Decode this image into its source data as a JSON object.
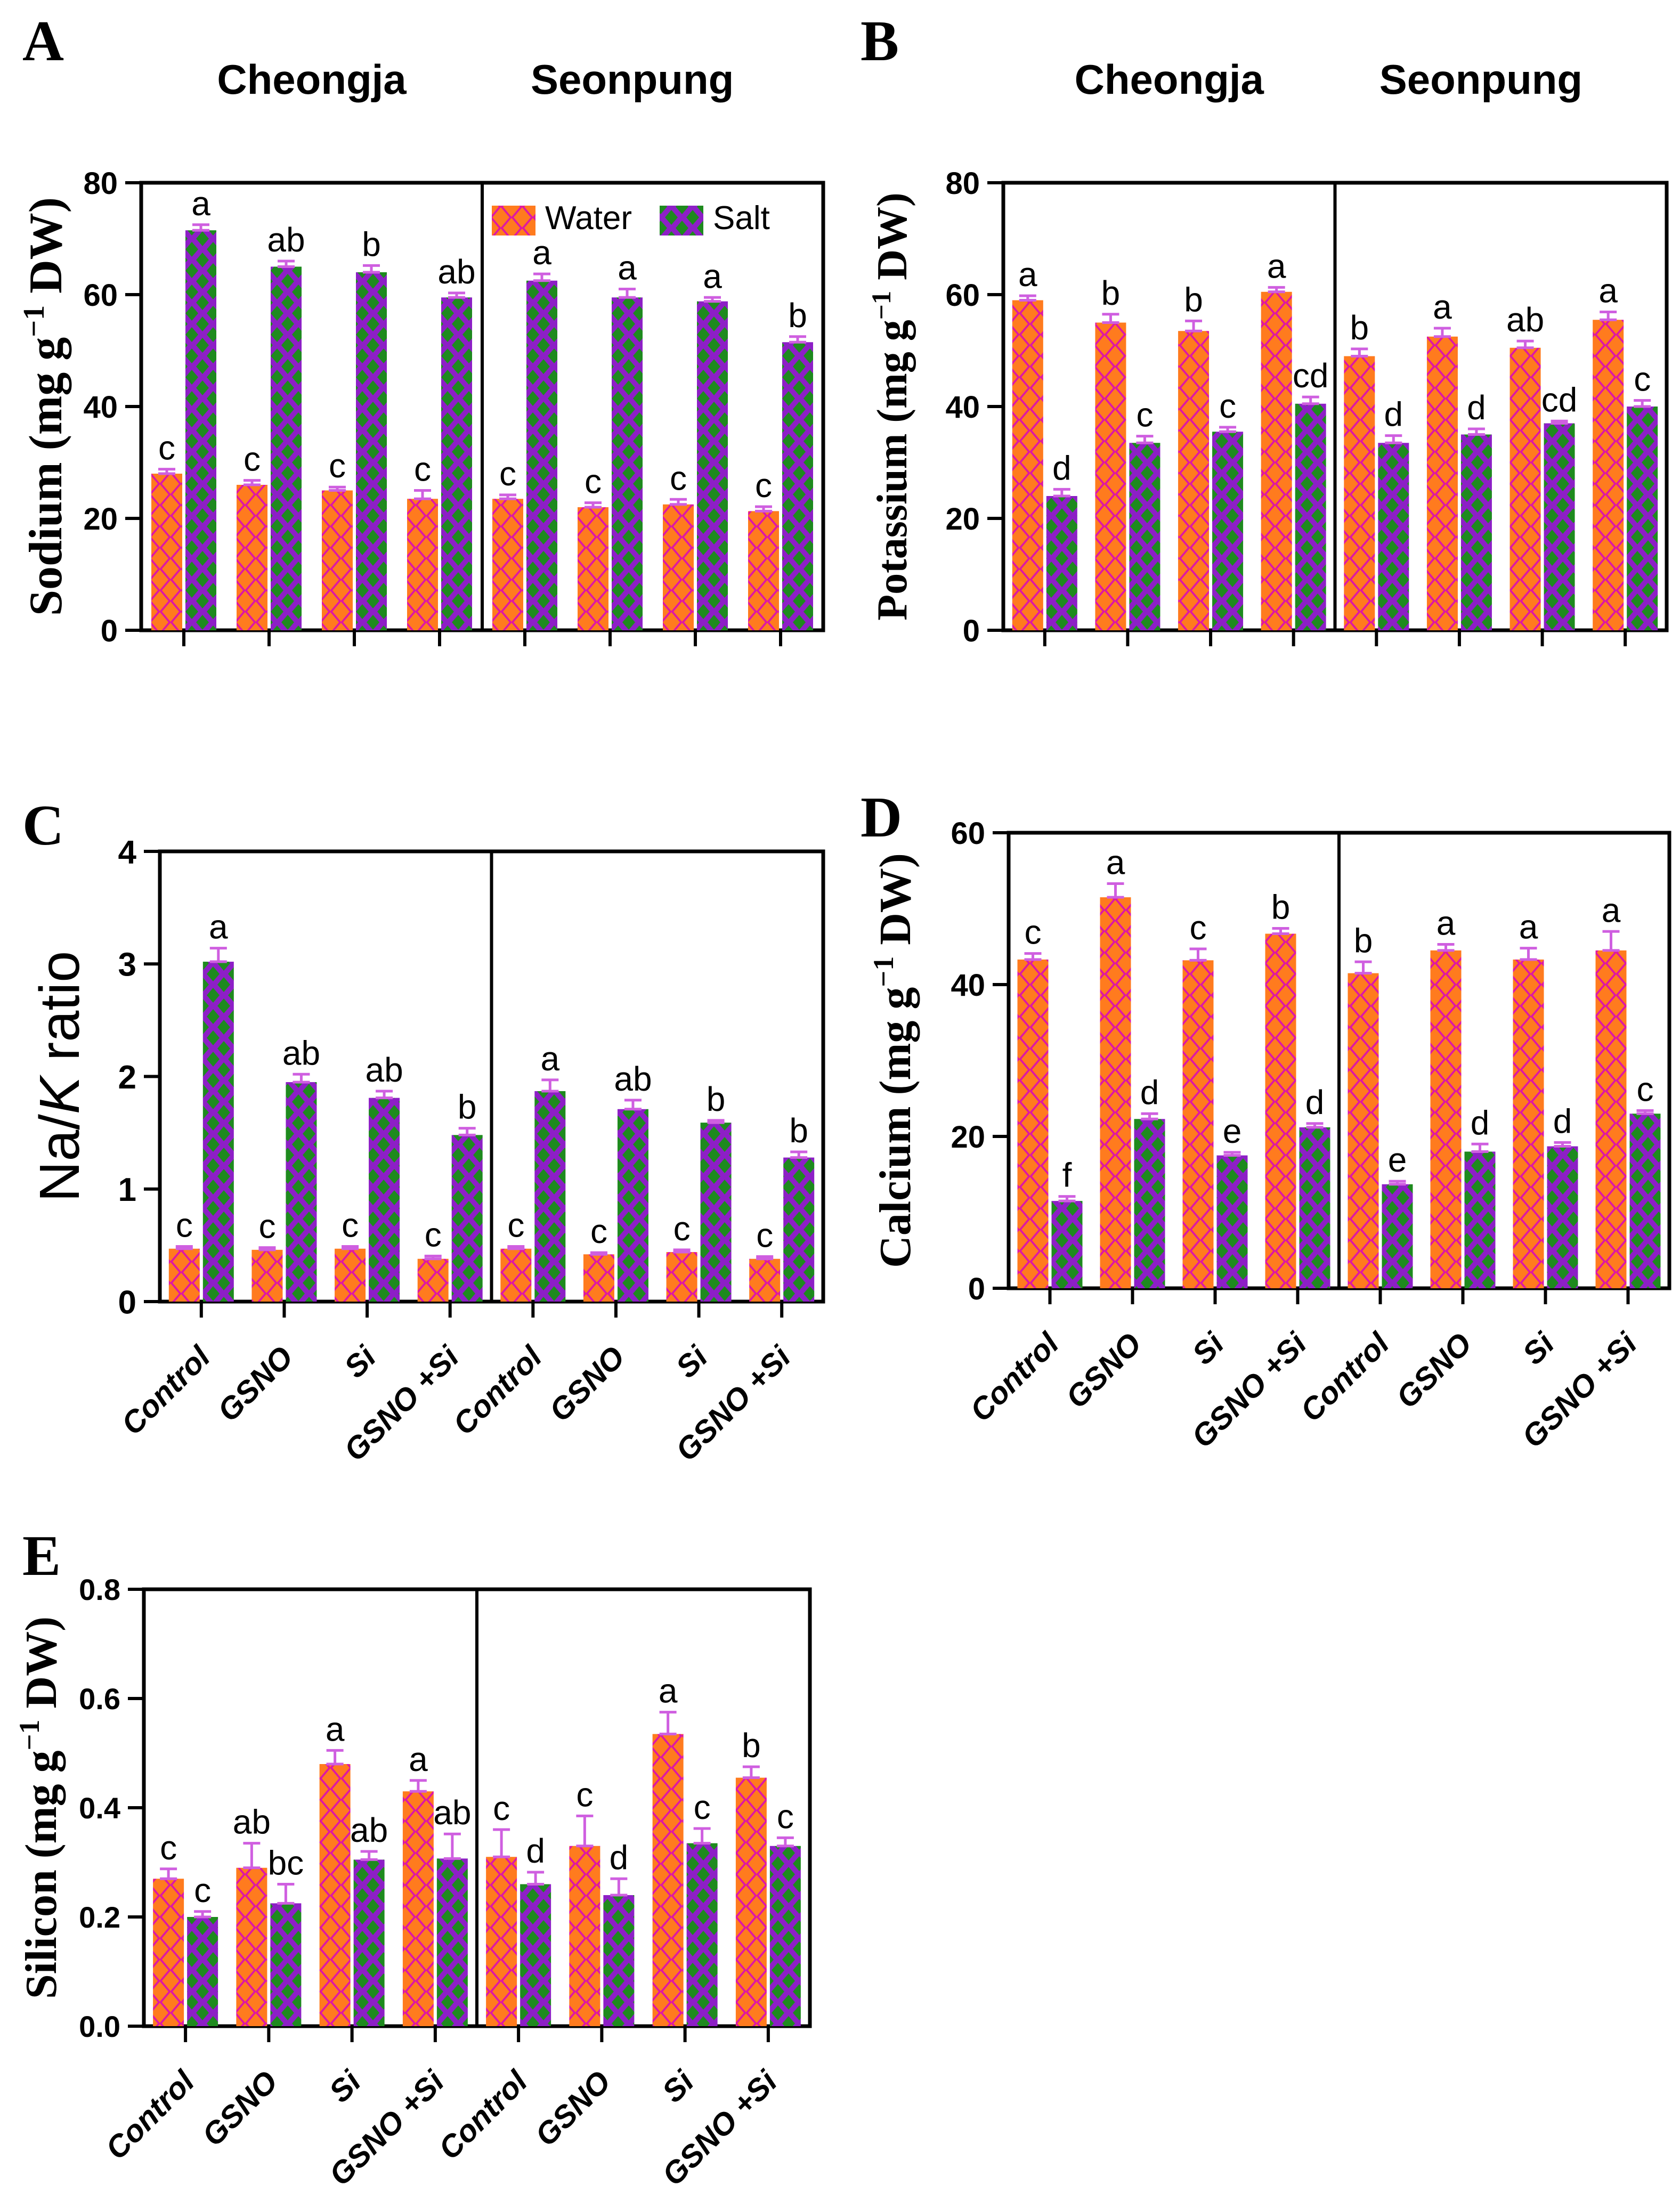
{
  "page": {
    "background": "#ffffff"
  },
  "legend": {
    "water": "Water",
    "salt": "Salt"
  },
  "cultivars": [
    "Cheongja",
    "Seonpung"
  ],
  "treatments": [
    "Control",
    "GSNO",
    "Si",
    "GSNO +Si"
  ],
  "colors": {
    "water_bg": "#de17a4",
    "water_diamond": "#ff7b1e",
    "salt_bg": "#8d1fc6",
    "salt_diamond": "#1e8a1e",
    "error_bar": "#cf5fe0",
    "axis": "#000000",
    "text": "#000000"
  },
  "chart_data": [
    {
      "id": "A",
      "panel_letter": "A",
      "type": "bar",
      "ylabel": "Sodium (mg g⁻¹ DW)",
      "ylim": [
        0,
        80
      ],
      "yticks": [
        0,
        20,
        40,
        60,
        80
      ],
      "ytick_labels": [
        "0",
        "20",
        "40",
        "60",
        "80"
      ],
      "group_titles": [
        "Cheongja",
        "Seonpung"
      ],
      "categories": [
        "Control",
        "GSNO",
        "Si",
        "GSNO +Si"
      ],
      "legend_entries": [
        "Water",
        "Salt"
      ],
      "legend_visible": true,
      "x_labels_visible": false,
      "groups": [
        {
          "cultivar": "Cheongja",
          "water": {
            "values": [
              28,
              26,
              25,
              23.5
            ],
            "errors": [
              0.8,
              0.8,
              0.6,
              1.5
            ],
            "letters": [
              "c",
              "c",
              "c",
              "c"
            ]
          },
          "salt": {
            "values": [
              71.5,
              65,
              64,
              59.5
            ],
            "errors": [
              1,
              1,
              1.2,
              0.8
            ],
            "letters": [
              "a",
              "ab",
              "b",
              "ab"
            ]
          }
        },
        {
          "cultivar": "Seonpung",
          "water": {
            "values": [
              23.5,
              22,
              22.5,
              21.3
            ],
            "errors": [
              0.7,
              0.8,
              0.9,
              0.8
            ],
            "letters": [
              "c",
              "c",
              "c",
              "c"
            ]
          },
          "salt": {
            "values": [
              62.5,
              59.5,
              58.8,
              51.5
            ],
            "errors": [
              1.2,
              1.5,
              0.7,
              1
            ],
            "letters": [
              "a",
              "a",
              "a",
              "b"
            ]
          }
        }
      ]
    },
    {
      "id": "B",
      "panel_letter": "B",
      "type": "bar",
      "ylabel": "Potassium (mg g⁻¹ DW)",
      "ylim": [
        0,
        80
      ],
      "yticks": [
        0,
        20,
        40,
        60,
        80
      ],
      "ytick_labels": [
        "0",
        "20",
        "40",
        "60",
        "80"
      ],
      "group_titles": [
        "Cheongja",
        "Seonpung"
      ],
      "categories": [
        "Control",
        "GSNO",
        "Si",
        "GSNO +Si"
      ],
      "legend_visible": false,
      "x_labels_visible": false,
      "groups": [
        {
          "cultivar": "Cheongja",
          "water": {
            "values": [
              59,
              55,
              53.5,
              60.5
            ],
            "errors": [
              0.8,
              1.5,
              1.8,
              0.8
            ],
            "letters": [
              "a",
              "b",
              "b",
              "a"
            ]
          },
          "salt": {
            "values": [
              24,
              33.5,
              35.5,
              40.5
            ],
            "errors": [
              1.2,
              1.2,
              0.8,
              1.2
            ],
            "letters": [
              "d",
              "c",
              "c",
              "cd"
            ]
          }
        },
        {
          "cultivar": "Seonpung",
          "water": {
            "values": [
              49,
              52.5,
              50.5,
              55.5
            ],
            "errors": [
              1.3,
              1.5,
              1.2,
              1.4
            ],
            "letters": [
              "b",
              "a",
              "ab",
              "a"
            ]
          },
          "salt": {
            "values": [
              33.5,
              35,
              37,
              40
            ],
            "errors": [
              1.3,
              1,
              0.4,
              1.1
            ],
            "letters": [
              "d",
              "d",
              "cd",
              "c"
            ]
          }
        }
      ]
    },
    {
      "id": "C",
      "panel_letter": "C",
      "type": "bar",
      "ylabel": "Na/K ratio",
      "ylabel_segments": [
        {
          "t": "Na/"
        },
        {
          "t": "K",
          "i": true
        },
        {
          "t": " ratio"
        }
      ],
      "ylim": [
        0,
        4
      ],
      "yticks": [
        0,
        1,
        2,
        3,
        4
      ],
      "ytick_labels": [
        "0",
        "1",
        "2",
        "3",
        "4"
      ],
      "group_titles": [
        "Cheongja",
        "Seonpung"
      ],
      "categories": [
        "Control",
        "GSNO",
        "Si",
        "GSNO +Si"
      ],
      "legend_visible": false,
      "x_labels_visible": true,
      "groups": [
        {
          "cultivar": "Cheongja",
          "water": {
            "values": [
              0.47,
              0.46,
              0.47,
              0.38
            ],
            "errors": [
              0.02,
              0.02,
              0.02,
              0.025
            ],
            "letters": [
              "c",
              "c",
              "c",
              "c"
            ]
          },
          "salt": {
            "values": [
              3.02,
              1.95,
              1.81,
              1.48
            ],
            "errors": [
              0.12,
              0.07,
              0.06,
              0.06
            ],
            "letters": [
              "a",
              "ab",
              "ab",
              "b"
            ]
          }
        },
        {
          "cultivar": "Seonpung",
          "water": {
            "values": [
              0.47,
              0.42,
              0.44,
              0.38
            ],
            "errors": [
              0.02,
              0.015,
              0.02,
              0.02
            ],
            "letters": [
              "c",
              "c",
              "c",
              "c"
            ]
          },
          "salt": {
            "values": [
              1.87,
              1.71,
              1.59,
              1.28
            ],
            "errors": [
              0.1,
              0.08,
              0.02,
              0.05
            ],
            "letters": [
              "a",
              "ab",
              "b",
              "b"
            ]
          }
        }
      ]
    },
    {
      "id": "D",
      "panel_letter": "D",
      "type": "bar",
      "ylabel": "Calcium (mg g⁻¹ DW)",
      "ylim": [
        0,
        60
      ],
      "yticks": [
        0,
        20,
        40,
        60
      ],
      "ytick_labels": [
        "0",
        "20",
        "40",
        "60"
      ],
      "group_titles": [
        "Cheongja",
        "Seonpung"
      ],
      "categories": [
        "Control",
        "GSNO",
        "Si",
        "GSNO +Si"
      ],
      "legend_visible": false,
      "x_labels_visible": true,
      "groups": [
        {
          "cultivar": "Cheongja",
          "water": {
            "values": [
              43.3,
              51.5,
              43.2,
              46.7
            ],
            "errors": [
              0.8,
              1.8,
              1.5,
              0.7
            ],
            "letters": [
              "c",
              "a",
              "c",
              "b"
            ]
          },
          "salt": {
            "values": [
              11.5,
              22.3,
              17.5,
              21.2
            ],
            "errors": [
              0.6,
              0.7,
              0.4,
              0.5
            ],
            "letters": [
              "f",
              "d",
              "e",
              "d"
            ]
          }
        },
        {
          "cultivar": "Seonpung",
          "water": {
            "values": [
              41.5,
              44.5,
              43.3,
              44.5
            ],
            "errors": [
              1.5,
              0.8,
              1.5,
              2.5
            ],
            "letters": [
              "b",
              "a",
              "a",
              "a"
            ]
          },
          "salt": {
            "values": [
              13.7,
              18,
              18.7,
              23
            ],
            "errors": [
              0.4,
              1,
              0.5,
              0.4
            ],
            "letters": [
              "e",
              "d",
              "d",
              "c"
            ]
          }
        }
      ]
    },
    {
      "id": "E",
      "panel_letter": "E",
      "type": "bar",
      "ylabel": "Silicon (mg g⁻¹ DW)",
      "ylim": [
        0,
        0.8
      ],
      "yticks": [
        0,
        0.2,
        0.4,
        0.6,
        0.8
      ],
      "ytick_labels": [
        "0.0",
        "0.2",
        "0.4",
        "0.6",
        "0.8"
      ],
      "group_titles": [
        "Cheongja",
        "Seonpung"
      ],
      "categories": [
        "Control",
        "GSNO",
        "Si",
        "GSNO +Si"
      ],
      "legend_visible": false,
      "x_labels_visible": true,
      "groups": [
        {
          "cultivar": "Cheongja",
          "water": {
            "values": [
              0.27,
              0.29,
              0.48,
              0.43
            ],
            "errors": [
              0.018,
              0.045,
              0.025,
              0.02
            ],
            "letters": [
              "c",
              "ab",
              "a",
              "a"
            ]
          },
          "salt": {
            "values": [
              0.2,
              0.225,
              0.305,
              0.307
            ],
            "errors": [
              0.01,
              0.035,
              0.015,
              0.045
            ],
            "letters": [
              "c",
              "bc",
              "ab",
              "ab"
            ]
          }
        },
        {
          "cultivar": "Seonpung",
          "water": {
            "values": [
              0.31,
              0.33,
              0.535,
              0.455
            ],
            "errors": [
              0.05,
              0.055,
              0.04,
              0.02
            ],
            "letters": [
              "c",
              "c",
              "a",
              "b"
            ]
          },
          "salt": {
            "values": [
              0.26,
              0.24,
              0.335,
              0.33
            ],
            "errors": [
              0.022,
              0.03,
              0.027,
              0.015
            ],
            "letters": [
              "d",
              "d",
              "c",
              "c"
            ]
          }
        }
      ]
    }
  ]
}
